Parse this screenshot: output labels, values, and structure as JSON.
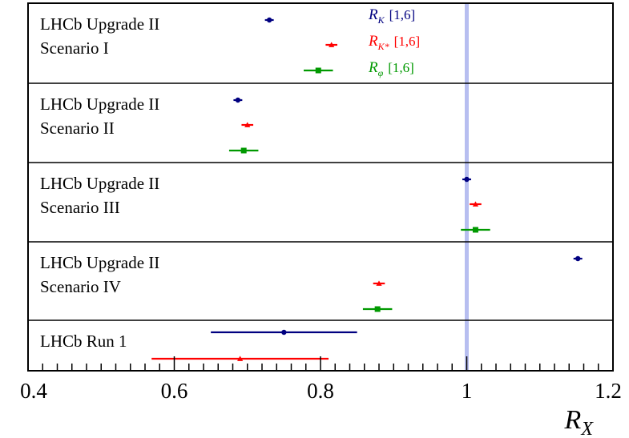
{
  "chart_data": {
    "type": "scatter",
    "xlim": [
      0.4,
      1.2
    ],
    "x_ticks": [
      {
        "value": 0.4,
        "label": "0.4"
      },
      {
        "value": 0.6,
        "label": "0.6"
      },
      {
        "value": 0.8,
        "label": "0.8"
      },
      {
        "value": 1.0,
        "label": "1"
      },
      {
        "value": 1.2,
        "label": "1.2"
      }
    ],
    "xlabel": {
      "main": "R",
      "sub": "X"
    },
    "reference_line": {
      "value": 1.0,
      "color": "#b7bef0"
    },
    "legend": [
      {
        "main": "R",
        "sub": "K",
        "range": "[1,6]",
        "color": "#000080",
        "marker": "circle"
      },
      {
        "main": "R",
        "sub": "K*",
        "range": "[1,6]",
        "color": "#ff0000",
        "marker": "triangle"
      },
      {
        "main": "R",
        "sub": "φ",
        "range": "[1,6]",
        "color": "#009900",
        "marker": "square"
      }
    ],
    "panels": [
      {
        "label_lines": [
          "LHCb Upgrade II",
          "Scenario I"
        ],
        "points": [
          {
            "series": 0,
            "value": 0.73,
            "low": 0.724,
            "high": 0.736
          },
          {
            "series": 1,
            "value": 0.815,
            "low": 0.807,
            "high": 0.823
          },
          {
            "series": 2,
            "value": 0.797,
            "low": 0.777,
            "high": 0.817
          }
        ]
      },
      {
        "label_lines": [
          "LHCb Upgrade II",
          "Scenario II"
        ],
        "points": [
          {
            "series": 0,
            "value": 0.687,
            "low": 0.681,
            "high": 0.693
          },
          {
            "series": 1,
            "value": 0.7,
            "low": 0.692,
            "high": 0.708
          },
          {
            "series": 2,
            "value": 0.695,
            "low": 0.675,
            "high": 0.715
          }
        ]
      },
      {
        "label_lines": [
          "LHCb Upgrade II",
          "Scenario III"
        ],
        "points": [
          {
            "series": 0,
            "value": 1.0,
            "low": 0.994,
            "high": 1.006
          },
          {
            "series": 1,
            "value": 1.012,
            "low": 1.004,
            "high": 1.02
          },
          {
            "series": 2,
            "value": 1.012,
            "low": 0.992,
            "high": 1.032
          }
        ]
      },
      {
        "label_lines": [
          "LHCb Upgrade II",
          "Scenario IV"
        ],
        "points": [
          {
            "series": 0,
            "value": 1.152,
            "low": 1.146,
            "high": 1.158
          },
          {
            "series": 1,
            "value": 0.88,
            "low": 0.872,
            "high": 0.888
          },
          {
            "series": 2,
            "value": 0.878,
            "low": 0.858,
            "high": 0.898
          }
        ]
      },
      {
        "label_lines": [
          "LHCb Run 1"
        ],
        "points": [
          {
            "series": 0,
            "value": 0.75,
            "low": 0.65,
            "high": 0.85
          },
          {
            "series": 1,
            "value": 0.69,
            "low": 0.569,
            "high": 0.811
          }
        ]
      }
    ]
  }
}
